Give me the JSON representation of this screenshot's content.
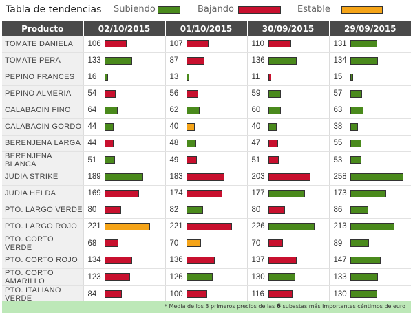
{
  "legend": {
    "title": "Tabla de tendencias",
    "items": [
      {
        "label": "Subiendo",
        "trend": "up"
      },
      {
        "label": "Bajando",
        "trend": "down"
      },
      {
        "label": "Estable",
        "trend": "stable"
      }
    ]
  },
  "colors": {
    "up": "#4a8a1c",
    "down": "#c8102e",
    "stable": "#f5a418"
  },
  "table": {
    "headers": [
      "Producto",
      "02/10/2015",
      "01/10/2015",
      "30/09/2015",
      "29/09/2015"
    ],
    "rows": [
      {
        "product": "TOMATE DANIELA",
        "cells": [
          {
            "v": 106,
            "t": "down"
          },
          {
            "v": 107,
            "t": "down"
          },
          {
            "v": 110,
            "t": "down"
          },
          {
            "v": 131,
            "t": "up"
          }
        ]
      },
      {
        "product": "TOMATE PERA",
        "cells": [
          {
            "v": 133,
            "t": "up"
          },
          {
            "v": 87,
            "t": "down"
          },
          {
            "v": 136,
            "t": "up"
          },
          {
            "v": 134,
            "t": "up"
          }
        ]
      },
      {
        "product": "PEPINO FRANCES",
        "cells": [
          {
            "v": 16,
            "t": "up"
          },
          {
            "v": 13,
            "t": "up"
          },
          {
            "v": 11,
            "t": "down"
          },
          {
            "v": 15,
            "t": "up"
          }
        ]
      },
      {
        "product": "PEPINO ALMERIA",
        "cells": [
          {
            "v": 54,
            "t": "down"
          },
          {
            "v": 56,
            "t": "down"
          },
          {
            "v": 59,
            "t": "up"
          },
          {
            "v": 57,
            "t": "up"
          }
        ]
      },
      {
        "product": "CALABACIN FINO",
        "cells": [
          {
            "v": 64,
            "t": "up"
          },
          {
            "v": 62,
            "t": "up"
          },
          {
            "v": 60,
            "t": "up"
          },
          {
            "v": 63,
            "t": "up"
          }
        ]
      },
      {
        "product": "CALABACIN GORDO",
        "cells": [
          {
            "v": 44,
            "t": "up"
          },
          {
            "v": 40,
            "t": "stable"
          },
          {
            "v": 40,
            "t": "up"
          },
          {
            "v": 38,
            "t": "up"
          }
        ]
      },
      {
        "product": "BERENJENA LARGA",
        "cells": [
          {
            "v": 44,
            "t": "down"
          },
          {
            "v": 48,
            "t": "up"
          },
          {
            "v": 47,
            "t": "down"
          },
          {
            "v": 55,
            "t": "up"
          }
        ]
      },
      {
        "product": "BERENJENA BLANCA",
        "cells": [
          {
            "v": 51,
            "t": "up"
          },
          {
            "v": 49,
            "t": "down"
          },
          {
            "v": 51,
            "t": "down"
          },
          {
            "v": 53,
            "t": "up"
          }
        ]
      },
      {
        "product": "JUDIA STRIKE",
        "cells": [
          {
            "v": 189,
            "t": "up"
          },
          {
            "v": 183,
            "t": "down"
          },
          {
            "v": 203,
            "t": "down"
          },
          {
            "v": 258,
            "t": "up"
          }
        ]
      },
      {
        "product": "JUDIA HELDA",
        "cells": [
          {
            "v": 169,
            "t": "down"
          },
          {
            "v": 174,
            "t": "down"
          },
          {
            "v": 177,
            "t": "up"
          },
          {
            "v": 173,
            "t": "up"
          }
        ]
      },
      {
        "product": "PTO. LARGO VERDE",
        "cells": [
          {
            "v": 80,
            "t": "down"
          },
          {
            "v": 82,
            "t": "up"
          },
          {
            "v": 80,
            "t": "down"
          },
          {
            "v": 86,
            "t": "up"
          }
        ]
      },
      {
        "product": "PTO. LARGO ROJO",
        "cells": [
          {
            "v": 221,
            "t": "stable"
          },
          {
            "v": 221,
            "t": "down"
          },
          {
            "v": 226,
            "t": "up"
          },
          {
            "v": 213,
            "t": "up"
          }
        ]
      },
      {
        "product": "PTO. CORTO VERDE",
        "cells": [
          {
            "v": 68,
            "t": "down"
          },
          {
            "v": 70,
            "t": "stable"
          },
          {
            "v": 70,
            "t": "down"
          },
          {
            "v": 89,
            "t": "up"
          }
        ]
      },
      {
        "product": "PTO. CORTO ROJO",
        "cells": [
          {
            "v": 134,
            "t": "down"
          },
          {
            "v": 136,
            "t": "down"
          },
          {
            "v": 137,
            "t": "down"
          },
          {
            "v": 147,
            "t": "up"
          }
        ]
      },
      {
        "product": "PTO. CORTO AMARILLO",
        "cells": [
          {
            "v": 123,
            "t": "down"
          },
          {
            "v": 126,
            "t": "up"
          },
          {
            "v": 130,
            "t": "up"
          },
          {
            "v": 133,
            "t": "up"
          }
        ]
      },
      {
        "product": "PTO. ITALIANO VERDE",
        "cells": [
          {
            "v": 84,
            "t": "down"
          },
          {
            "v": 100,
            "t": "down"
          },
          {
            "v": 116,
            "t": "down"
          },
          {
            "v": 130,
            "t": "up"
          }
        ]
      }
    ]
  },
  "footnote": {
    "pre": "* Media de los 3 primeros precios de las",
    "count": "6",
    "post": "subastas más importantes céntimos de euro"
  }
}
